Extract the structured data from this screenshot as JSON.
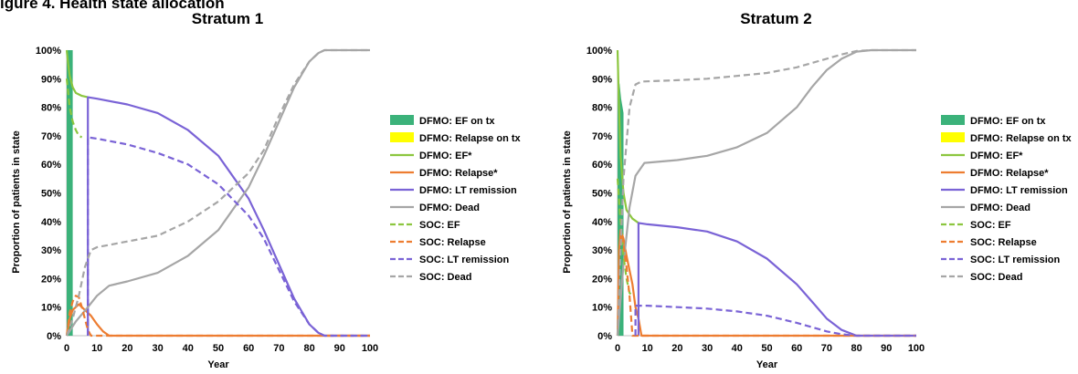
{
  "figure_title": "igure 4. Health state allocation",
  "chart_data": [
    {
      "type": "line",
      "title": "Stratum 1",
      "xlabel": "Year",
      "ylabel": "Proportion of patients in state",
      "xlim": [
        0,
        100
      ],
      "ylim": [
        0,
        100
      ],
      "x_ticks": [
        "0",
        "10",
        "20",
        "30",
        "40",
        "50",
        "60",
        "70",
        "80",
        "90",
        "100"
      ],
      "y_ticks": [
        "0%",
        "10%",
        "20%",
        "30%",
        "40%",
        "50%",
        "60%",
        "70%",
        "80%",
        "90%",
        "100%"
      ],
      "grid": false,
      "legend_position": "right",
      "series": [
        {
          "name": "DFMO: EF on tx",
          "kind": "area",
          "color": "#3bb27a",
          "points": [
            [
              0,
              100
            ],
            [
              2,
              100
            ],
            [
              2,
              0
            ],
            [
              0,
              0
            ]
          ]
        },
        {
          "name": "DFMO: Relapse on tx",
          "kind": "area",
          "color": "#ffff00",
          "points": [
            [
              0,
              0
            ],
            [
              2,
              0
            ],
            [
              2,
              0
            ],
            [
              0,
              0
            ]
          ]
        },
        {
          "name": "DFMO: EF*",
          "kind": "line",
          "dash": false,
          "color": "#8cc63f",
          "points": [
            [
              0,
              100
            ],
            [
              0.5,
              95
            ],
            [
              1,
              91
            ],
            [
              2,
              87
            ],
            [
              3,
              85
            ],
            [
              5,
              84
            ],
            [
              7,
              83.5
            ]
          ]
        },
        {
          "name": "DFMO: Relapse*",
          "kind": "line",
          "dash": false,
          "color": "#ed7d31",
          "points": [
            [
              0,
              0
            ],
            [
              1,
              6
            ],
            [
              2,
              9
            ],
            [
              4,
              11
            ],
            [
              6,
              9
            ],
            [
              8,
              7
            ],
            [
              10,
              4
            ],
            [
              12,
              1.5
            ],
            [
              14,
              0
            ],
            [
              100,
              0
            ]
          ]
        },
        {
          "name": "DFMO: LT remission",
          "kind": "line",
          "dash": false,
          "color": "#7a63d6",
          "points": [
            [
              7,
              0
            ],
            [
              7,
              83.5
            ],
            [
              10,
              83
            ],
            [
              20,
              81
            ],
            [
              30,
              78
            ],
            [
              40,
              72
            ],
            [
              50,
              63
            ],
            [
              60,
              48
            ],
            [
              65,
              37
            ],
            [
              70,
              25
            ],
            [
              75,
              13
            ],
            [
              80,
              4
            ],
            [
              83,
              1
            ],
            [
              85,
              0
            ],
            [
              100,
              0
            ]
          ]
        },
        {
          "name": "DFMO: Dead",
          "kind": "line",
          "dash": false,
          "color": "#a6a6a6",
          "points": [
            [
              0,
              0
            ],
            [
              3,
              5
            ],
            [
              7,
              10
            ],
            [
              10,
              14
            ],
            [
              14,
              17.5
            ],
            [
              20,
              19
            ],
            [
              30,
              22
            ],
            [
              40,
              28
            ],
            [
              50,
              37
            ],
            [
              60,
              52
            ],
            [
              65,
              63
            ],
            [
              70,
              75
            ],
            [
              75,
              87
            ],
            [
              80,
              96
            ],
            [
              83,
              99
            ],
            [
              85,
              100
            ],
            [
              100,
              100
            ]
          ]
        },
        {
          "name": "SOC: EF",
          "kind": "line",
          "dash": true,
          "color": "#8cc63f",
          "points": [
            [
              0,
              90
            ],
            [
              0.5,
              85
            ],
            [
              1,
              80
            ],
            [
              2,
              75
            ],
            [
              3,
              72
            ],
            [
              4,
              70
            ],
            [
              5,
              69.5
            ]
          ]
        },
        {
          "name": "SOC: Relapse",
          "kind": "line",
          "dash": true,
          "color": "#ed7d31",
          "points": [
            [
              0,
              0
            ],
            [
              1,
              8
            ],
            [
              2,
              12
            ],
            [
              3,
              14
            ],
            [
              4,
              13.5
            ],
            [
              5,
              10
            ],
            [
              6,
              6
            ],
            [
              7,
              2
            ],
            [
              8,
              0
            ],
            [
              100,
              0
            ]
          ]
        },
        {
          "name": "SOC: LT remission",
          "kind": "line",
          "dash": true,
          "color": "#7a63d6",
          "points": [
            [
              7,
              0
            ],
            [
              7,
              69.5
            ],
            [
              10,
              69
            ],
            [
              20,
              67
            ],
            [
              30,
              64
            ],
            [
              40,
              60
            ],
            [
              50,
              53
            ],
            [
              60,
              42
            ],
            [
              65,
              34
            ],
            [
              70,
              23
            ],
            [
              75,
              12
            ],
            [
              80,
              4
            ],
            [
              83,
              1
            ],
            [
              85,
              0
            ],
            [
              100,
              0
            ]
          ]
        },
        {
          "name": "SOC: Dead",
          "kind": "line",
          "dash": true,
          "color": "#a6a6a6",
          "points": [
            [
              0,
              0
            ],
            [
              2,
              6
            ],
            [
              4,
              14
            ],
            [
              6,
              24
            ],
            [
              8,
              30
            ],
            [
              10,
              31
            ],
            [
              20,
              33
            ],
            [
              30,
              35
            ],
            [
              40,
              40
            ],
            [
              50,
              47
            ],
            [
              60,
              57
            ],
            [
              65,
              65
            ],
            [
              70,
              77
            ],
            [
              75,
              88
            ],
            [
              80,
              96
            ],
            [
              83,
              99
            ],
            [
              85,
              100
            ],
            [
              100,
              100
            ]
          ]
        }
      ]
    },
    {
      "type": "line",
      "title": "Stratum 2",
      "xlabel": "Year",
      "ylabel": "Proportion of patients in state",
      "xlim": [
        0,
        100
      ],
      "ylim": [
        0,
        100
      ],
      "x_ticks": [
        "0",
        "10",
        "20",
        "30",
        "40",
        "50",
        "60",
        "70",
        "80",
        "90",
        "100"
      ],
      "y_ticks": [
        "0%",
        "10%",
        "20%",
        "30%",
        "40%",
        "50%",
        "60%",
        "70%",
        "80%",
        "90%",
        "100%"
      ],
      "grid": false,
      "legend_position": "right",
      "series": [
        {
          "name": "DFMO: EF on tx",
          "kind": "area",
          "color": "#3bb27a",
          "points": [
            [
              0,
              92
            ],
            [
              0.7,
              88
            ],
            [
              1.2,
              83
            ],
            [
              2,
              78
            ],
            [
              2,
              0
            ],
            [
              0,
              0
            ]
          ]
        },
        {
          "name": "DFMO: Relapse on tx",
          "kind": "area",
          "color": "#ffff00",
          "points": [
            [
              0,
              0
            ],
            [
              2,
              0
            ],
            [
              2,
              0
            ],
            [
              0,
              0
            ]
          ]
        },
        {
          "name": "DFMO: EF*",
          "kind": "line",
          "dash": false,
          "color": "#8cc63f",
          "points": [
            [
              0,
              100
            ],
            [
              0.5,
              80
            ],
            [
              1,
              63
            ],
            [
              2,
              50
            ],
            [
              3,
              44
            ],
            [
              5,
              41
            ],
            [
              7,
              39.5
            ]
          ]
        },
        {
          "name": "DFMO: Relapse*",
          "kind": "line",
          "dash": false,
          "color": "#ed7d31",
          "points": [
            [
              0,
              0
            ],
            [
              0.5,
              30
            ],
            [
              1,
              37
            ],
            [
              2,
              34
            ],
            [
              3,
              28
            ],
            [
              5,
              18
            ],
            [
              6,
              10
            ],
            [
              7,
              6
            ],
            [
              8,
              0
            ],
            [
              100,
              0
            ]
          ]
        },
        {
          "name": "DFMO: LT remission",
          "kind": "line",
          "dash": false,
          "color": "#7a63d6",
          "points": [
            [
              7,
              0
            ],
            [
              7,
              39.5
            ],
            [
              10,
              39
            ],
            [
              20,
              38
            ],
            [
              30,
              36.5
            ],
            [
              40,
              33
            ],
            [
              50,
              27
            ],
            [
              60,
              18
            ],
            [
              65,
              12
            ],
            [
              70,
              6
            ],
            [
              75,
              2
            ],
            [
              80,
              0
            ],
            [
              100,
              0
            ]
          ]
        },
        {
          "name": "DFMO: Dead",
          "kind": "line",
          "dash": false,
          "color": "#a6a6a6",
          "points": [
            [
              0,
              0
            ],
            [
              2,
              25
            ],
            [
              4,
              45
            ],
            [
              6,
              56
            ],
            [
              9,
              60.5
            ],
            [
              20,
              61.5
            ],
            [
              30,
              63
            ],
            [
              40,
              66
            ],
            [
              50,
              71
            ],
            [
              60,
              80
            ],
            [
              65,
              87
            ],
            [
              70,
              93
            ],
            [
              75,
              97
            ],
            [
              80,
              99.5
            ],
            [
              85,
              100
            ],
            [
              100,
              100
            ]
          ]
        },
        {
          "name": "SOC: EF",
          "kind": "line",
          "dash": true,
          "color": "#8cc63f",
          "points": [
            [
              0,
              55
            ],
            [
              1,
              40
            ],
            [
              2,
              28
            ],
            [
              3,
              20
            ],
            [
              4,
              15
            ],
            [
              5,
              14
            ]
          ]
        },
        {
          "name": "SOC: Relapse",
          "kind": "line",
          "dash": true,
          "color": "#ed7d31",
          "points": [
            [
              0,
              0
            ],
            [
              0.5,
              25
            ],
            [
              1,
              35
            ],
            [
              2,
              32
            ],
            [
              3,
              24
            ],
            [
              4,
              14
            ],
            [
              5,
              0
            ],
            [
              100,
              0
            ]
          ]
        },
        {
          "name": "SOC: LT remission",
          "kind": "line",
          "dash": true,
          "color": "#7a63d6",
          "points": [
            [
              6,
              0
            ],
            [
              6,
              10.5
            ],
            [
              10,
              10.5
            ],
            [
              20,
              10
            ],
            [
              30,
              9.5
            ],
            [
              40,
              8.5
            ],
            [
              50,
              7
            ],
            [
              60,
              4.5
            ],
            [
              65,
              3
            ],
            [
              70,
              1.5
            ],
            [
              75,
              0.5
            ],
            [
              80,
              0
            ],
            [
              100,
              0
            ]
          ]
        },
        {
          "name": "SOC: Dead",
          "kind": "line",
          "dash": true,
          "color": "#a6a6a6",
          "points": [
            [
              0,
              0
            ],
            [
              1,
              30
            ],
            [
              2,
              55
            ],
            [
              4,
              80
            ],
            [
              6,
              88
            ],
            [
              8,
              89
            ],
            [
              20,
              89.5
            ],
            [
              30,
              90
            ],
            [
              40,
              91
            ],
            [
              50,
              92
            ],
            [
              60,
              94
            ],
            [
              65,
              95.5
            ],
            [
              70,
              97
            ],
            [
              75,
              98.5
            ],
            [
              80,
              99.7
            ],
            [
              85,
              100
            ],
            [
              100,
              100
            ]
          ]
        }
      ]
    }
  ]
}
